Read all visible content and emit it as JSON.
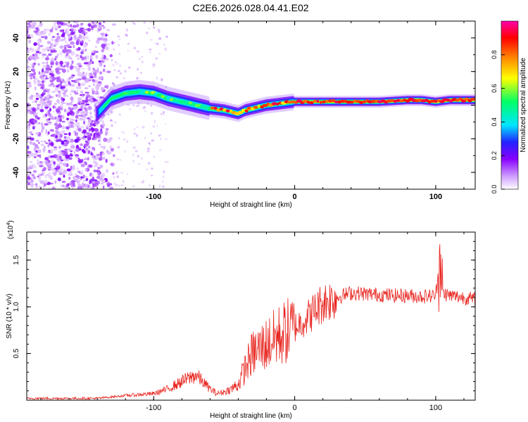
{
  "title": "C2E6.2026.028.04.41.E02",
  "chart_data": [
    {
      "type": "heatmap",
      "name": "spectrogram",
      "xlabel": "Height of straight line (km)",
      "ylabel": "Frequency (Hz)",
      "xlim": [
        -190,
        128
      ],
      "ylim": [
        -50,
        50
      ],
      "x_ticks": [
        -100,
        0,
        100
      ],
      "y_ticks": [
        -40,
        -20,
        0,
        20,
        40
      ],
      "colorbar": {
        "label": "Normalized spectral amplitude",
        "range": [
          0,
          1
        ],
        "ticks": [
          0.0,
          0.2,
          0.4,
          0.6,
          0.8
        ],
        "colors": [
          "#ffffff",
          "#cc99ff",
          "#8800ff",
          "#2222ff",
          "#00e5ff",
          "#00ff66",
          "#ffff00",
          "#ff8800",
          "#ff0000",
          "#ff00aa"
        ]
      },
      "ridge": {
        "x": [
          -140,
          -130,
          -120,
          -110,
          -100,
          -90,
          -80,
          -70,
          -60,
          -50,
          -45,
          -40,
          -35,
          -30,
          -20,
          -10,
          0,
          10,
          20,
          40,
          60,
          80,
          90,
          100,
          110,
          128
        ],
        "y": [
          -5,
          4,
          7,
          8,
          7,
          4,
          2,
          0,
          -2,
          -3,
          -4,
          -5,
          -3,
          -2,
          0,
          1,
          2,
          2,
          2,
          2,
          2,
          3,
          3,
          2,
          3,
          3
        ]
      }
    },
    {
      "type": "line",
      "name": "snr",
      "xlabel": "Height of straight line (km)",
      "ylabel": "SNR (10 * v/v)",
      "y_multiplier": "(x10",
      "y_multiplier_exp": "4",
      "xlim": [
        -190,
        128
      ],
      "ylim": [
        0,
        1.8
      ],
      "x_ticks": [
        -100,
        0,
        100
      ],
      "y_ticks": [
        0.5,
        1.0,
        1.5
      ],
      "color": "#e8221c",
      "envelope": {
        "x": [
          -190,
          -140,
          -120,
          -100,
          -90,
          -80,
          -70,
          -60,
          -55,
          -50,
          -45,
          -40,
          -35,
          -30,
          -25,
          -20,
          -15,
          -10,
          0,
          10,
          20,
          30,
          40,
          50,
          60,
          70,
          80,
          90,
          100,
          103,
          105,
          110,
          120,
          128
        ],
        "y": [
          0.02,
          0.02,
          0.05,
          0.07,
          0.12,
          0.2,
          0.27,
          0.12,
          0.07,
          0.09,
          0.12,
          0.17,
          0.35,
          0.5,
          0.55,
          0.6,
          0.65,
          0.7,
          0.78,
          0.9,
          1.05,
          1.1,
          1.15,
          1.14,
          1.13,
          1.12,
          1.12,
          1.11,
          1.12,
          1.5,
          1.15,
          1.12,
          1.1,
          1.08
        ]
      }
    }
  ]
}
